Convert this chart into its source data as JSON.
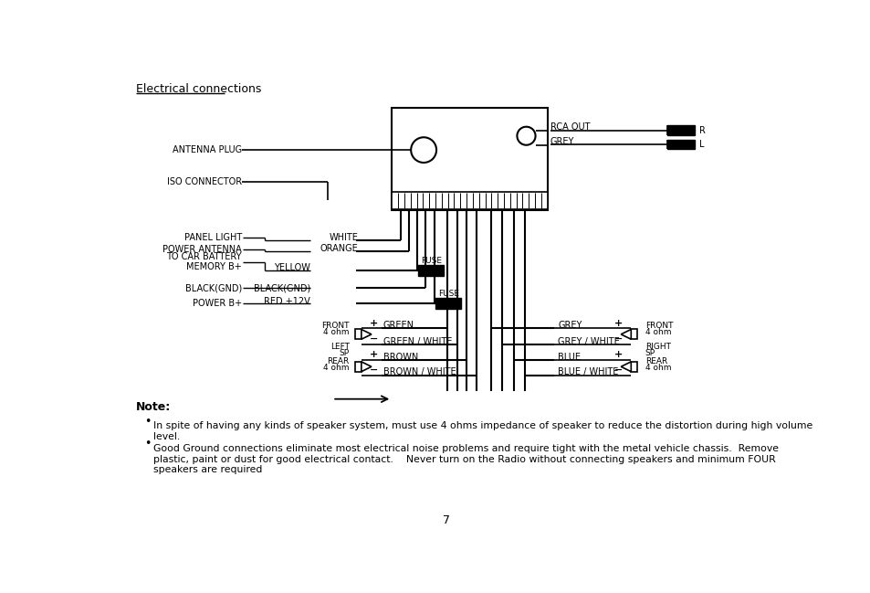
{
  "title": "Electrical connections",
  "bg_color": "#ffffff",
  "text_color": "#000000",
  "note_title": "Note:",
  "bullet1": "In spite of having any kinds of speaker system, must use 4 ohms impedance of speaker to reduce the distortion during high volume\nlevel.",
  "bullet2": "Good Ground connections eliminate most electrical noise problems and require tight with the metal vehicle chassis.  Remove\nplastic, paint or dust for good electrical contact.    Never turn on the Radio without connecting speakers and minimum FOUR\nspeakers are required",
  "page_num": "7"
}
